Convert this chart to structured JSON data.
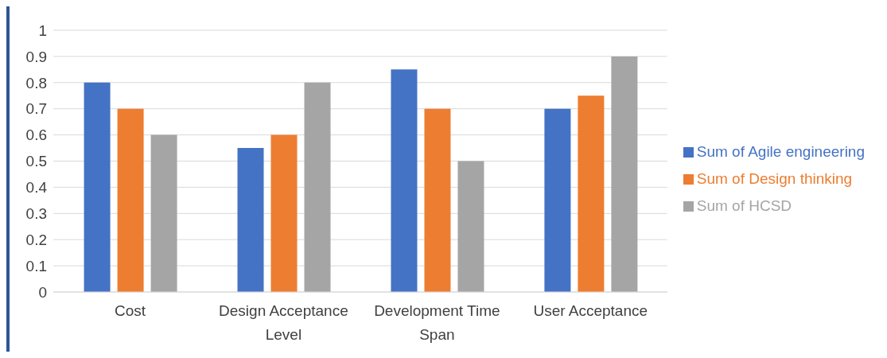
{
  "chart_data": {
    "type": "bar",
    "categories": [
      "Cost",
      "Design Acceptance Level",
      "Development Time Span",
      "User Acceptance"
    ],
    "series": [
      {
        "name": "Sum of Agile engineering",
        "color": "#4472c4",
        "values": [
          0.8,
          0.55,
          0.85,
          0.7
        ]
      },
      {
        "name": "Sum of Design thinking",
        "color": "#ed7d31",
        "values": [
          0.7,
          0.6,
          0.7,
          0.75
        ]
      },
      {
        "name": "Sum of HCSD",
        "color": "#a5a5a5",
        "values": [
          0.6,
          0.8,
          0.5,
          0.9
        ]
      }
    ],
    "ylim": [
      0,
      1
    ],
    "yticks": [
      0,
      0.1,
      0.2,
      0.3,
      0.4,
      0.5,
      0.6,
      0.7,
      0.8,
      0.9,
      1
    ],
    "grid": "y",
    "legend": "right"
  }
}
